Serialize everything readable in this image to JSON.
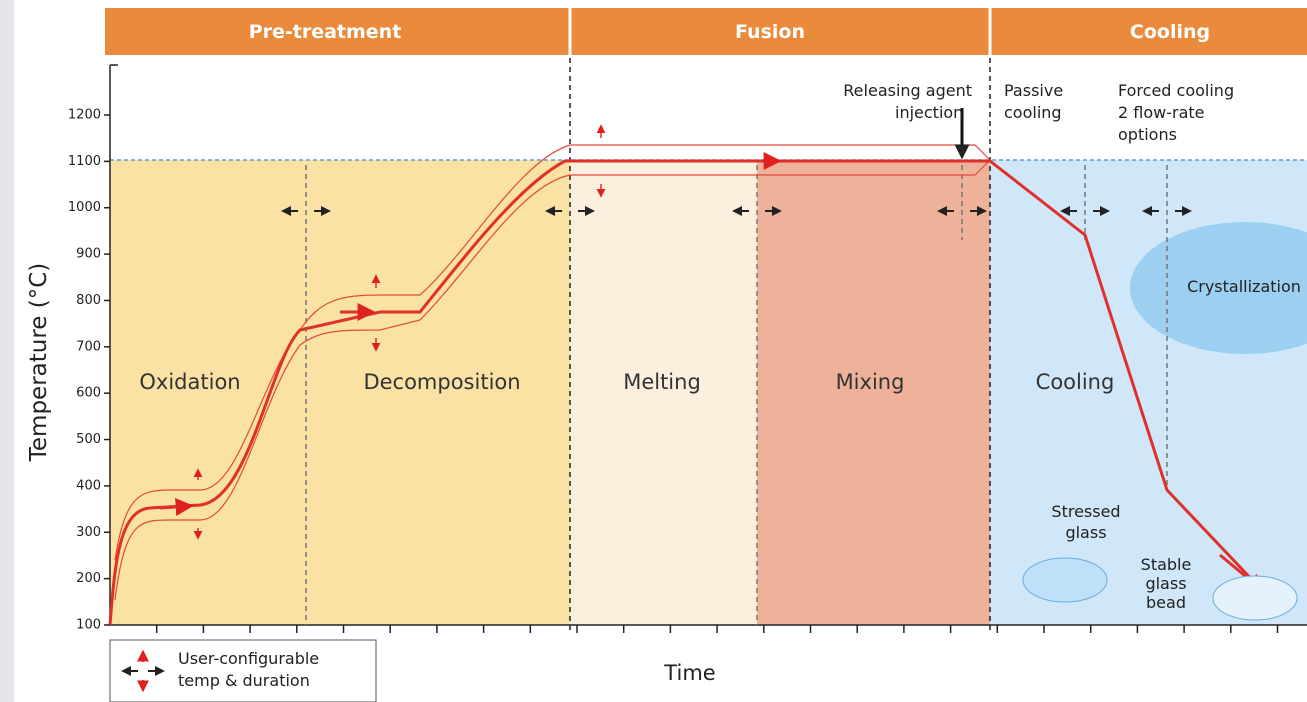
{
  "phases": [
    "Pre-treatment",
    "Fusion",
    "Cooling"
  ],
  "y_axis": {
    "label": "Temperature (°C)",
    "ticks": [
      100,
      200,
      300,
      400,
      500,
      600,
      700,
      800,
      900,
      1000,
      1100,
      1200
    ]
  },
  "x_axis": {
    "label": "Time"
  },
  "stages": [
    "Oxidation",
    "Decomposition",
    "Melting",
    "Mixing",
    "Cooling"
  ],
  "annotations": {
    "releasing_agent": [
      "Releasing agent",
      "injection"
    ],
    "passive_cooling": [
      "Passive",
      "cooling"
    ],
    "forced_cooling": [
      "Forced cooling",
      "2 flow-rate",
      "options"
    ],
    "crystallization": "Crystallization",
    "stressed_glass": [
      "Stressed",
      "glass"
    ],
    "stable_glass_bead": [
      "Stable",
      "glass",
      "bead"
    ]
  },
  "legend": [
    "User-configurable",
    "temp & duration"
  ]
}
